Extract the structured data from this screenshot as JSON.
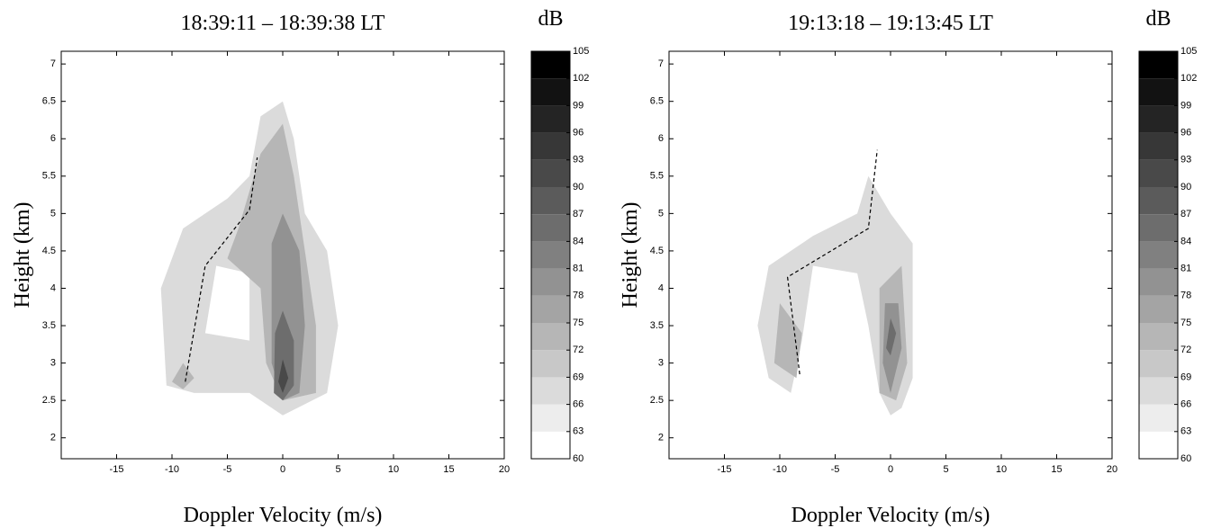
{
  "chart_data": [
    {
      "type": "contour",
      "title": "18:39:11  –  18:39:38 LT",
      "xlabel": "Doppler Velocity (m/s)",
      "ylabel": "Height (km)",
      "xlim": [
        -20,
        20
      ],
      "ylim": [
        1.72,
        7.17
      ],
      "xticks": [
        -15,
        -10,
        -5,
        0,
        5,
        10,
        15,
        20
      ],
      "yticks": [
        2,
        2.5,
        3,
        3.5,
        4,
        4.5,
        5,
        5.5,
        6,
        6.5,
        7
      ],
      "colorbar": {
        "label": "dB",
        "lim": [
          60,
          105
        ],
        "ticks": [
          60,
          63,
          66,
          69,
          72,
          75,
          78,
          81,
          84,
          87,
          90,
          93,
          96,
          99,
          102,
          105
        ]
      },
      "regions": [
        {
          "level": 66,
          "x": [
            -10.5,
            -11,
            -9,
            -5,
            -3,
            -2,
            0,
            1,
            2,
            4,
            5,
            4,
            0,
            -3,
            -8
          ],
          "y": [
            2.7,
            4,
            4.8,
            5.2,
            5.5,
            6.3,
            6.5,
            6,
            5,
            4.5,
            3.5,
            2.6,
            2.3,
            2.6,
            2.6
          ]
        },
        {
          "level": 60,
          "x": [
            -7,
            -6,
            -3,
            -3
          ],
          "y": [
            3.4,
            4.3,
            4.2,
            3.3
          ]
        },
        {
          "level": 72,
          "x": [
            -4,
            -2,
            0,
            1,
            2,
            3,
            3,
            0,
            -1.5,
            -2,
            -5
          ],
          "y": [
            4.8,
            5.8,
            6.2,
            5.5,
            4.5,
            3.5,
            2.6,
            2.5,
            3,
            4,
            4.4
          ]
        },
        {
          "level": 72,
          "x": [
            -10,
            -9,
            -8,
            -9
          ],
          "y": [
            2.75,
            3,
            2.8,
            2.65
          ]
        },
        {
          "level": 78,
          "x": [
            -1,
            -1,
            0,
            1.5,
            2,
            1.5,
            0
          ],
          "y": [
            3,
            4.6,
            5,
            4.5,
            3.5,
            2.6,
            2.5
          ]
        },
        {
          "level": 84,
          "x": [
            -0.8,
            -0.7,
            0,
            1,
            1,
            0
          ],
          "y": [
            2.6,
            3.4,
            3.7,
            3.3,
            2.7,
            2.5
          ]
        },
        {
          "level": 90,
          "x": [
            -0.4,
            0,
            0.5,
            0
          ],
          "y": [
            2.75,
            3.05,
            2.8,
            2.6
          ]
        }
      ],
      "lines": [
        {
          "x": [
            -8.8,
            -7,
            -3,
            -2.3
          ],
          "y": [
            2.75,
            4.3,
            5.05,
            5.75
          ]
        }
      ]
    },
    {
      "type": "contour",
      "title": "19:13:18  –  19:13:45 LT",
      "xlabel": "Doppler Velocity (m/s)",
      "ylabel": "Height (km)",
      "xlim": [
        -20,
        20
      ],
      "ylim": [
        1.72,
        7.17
      ],
      "xticks": [
        -15,
        -10,
        -5,
        0,
        5,
        10,
        15,
        20
      ],
      "yticks": [
        2,
        2.5,
        3,
        3.5,
        4,
        4.5,
        5,
        5.5,
        6,
        6.5,
        7
      ],
      "colorbar": {
        "label": "dB",
        "lim": [
          60,
          105
        ],
        "ticks": [
          60,
          63,
          66,
          69,
          72,
          75,
          78,
          81,
          84,
          87,
          90,
          93,
          96,
          99,
          102,
          105
        ]
      },
      "regions": [
        {
          "level": 66,
          "x": [
            -11,
            -12,
            -11,
            -7,
            -3,
            -2,
            0,
            2,
            2,
            2,
            1,
            0,
            -1,
            -2,
            -3,
            -7,
            -8,
            -9
          ],
          "y": [
            2.8,
            3.5,
            4.3,
            4.7,
            5,
            5.5,
            5,
            4.6,
            3.5,
            2.8,
            2.4,
            2.3,
            2.6,
            3.5,
            4.2,
            4.3,
            3.3,
            2.6
          ]
        },
        {
          "level": 72,
          "x": [
            -10.5,
            -10,
            -8,
            -8.5
          ],
          "y": [
            3,
            3.8,
            3.4,
            2.8
          ]
        },
        {
          "level": 72,
          "x": [
            -1,
            -1,
            1,
            1.5,
            0.5
          ],
          "y": [
            2.6,
            4,
            4.3,
            3,
            2.5
          ]
        },
        {
          "level": 78,
          "x": [
            -0.7,
            -0.5,
            0.7,
            1,
            0
          ],
          "y": [
            3,
            3.8,
            3.8,
            3.2,
            2.6
          ]
        },
        {
          "level": 84,
          "x": [
            -0.4,
            0,
            0.5,
            0
          ],
          "y": [
            3.2,
            3.6,
            3.4,
            3.1
          ]
        }
      ],
      "lines": [
        {
          "x": [
            -8.2,
            -9.3,
            -2,
            -1.2
          ],
          "y": [
            2.85,
            4.15,
            4.8,
            5.85
          ]
        }
      ]
    }
  ]
}
